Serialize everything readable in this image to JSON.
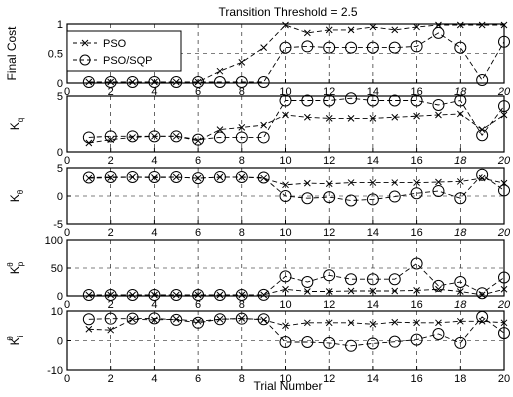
{
  "chart_data": [
    {
      "type": "line",
      "title": "Transition Threshold = 2.5",
      "ylabel": "Final Cost",
      "ylim": [
        0,
        1
      ],
      "yticks": [
        "0",
        "0.5",
        "1"
      ],
      "x": [
        1,
        2,
        3,
        4,
        5,
        6,
        7,
        8,
        9,
        10,
        11,
        12,
        13,
        14,
        15,
        16,
        17,
        18,
        19,
        20
      ],
      "series": [
        {
          "name": "PSO",
          "values": [
            0,
            0,
            0,
            0,
            0,
            0,
            0.2,
            0.35,
            0.6,
            1.0,
            0.85,
            0.9,
            0.9,
            0.95,
            0.9,
            0.95,
            1.0,
            1.0,
            1.05,
            1.05
          ]
        },
        {
          "name": "PSO/SQP",
          "values": [
            0,
            0,
            0,
            0,
            0,
            0,
            0,
            0,
            0,
            0.6,
            0.62,
            0.6,
            0.6,
            0.6,
            0.6,
            0.62,
            0.85,
            0.6,
            0.05,
            0.7
          ]
        }
      ],
      "legend": "top-left",
      "grid": true
    },
    {
      "type": "line",
      "ylabel": "K",
      "ylabel_sub": "q",
      "ylim": [
        0,
        5
      ],
      "yticks": [
        "0",
        "5"
      ],
      "x": [
        1,
        2,
        3,
        4,
        5,
        6,
        7,
        8,
        9,
        10,
        11,
        12,
        13,
        14,
        15,
        16,
        17,
        18,
        19,
        20
      ],
      "series": [
        {
          "name": "PSO",
          "values": [
            0.8,
            1.1,
            1.3,
            1.4,
            1.4,
            1.0,
            2.0,
            2.2,
            2.4,
            3.3,
            3.1,
            3.0,
            3.0,
            3.0,
            3.1,
            3.2,
            3.3,
            3.4,
            2.0,
            3.3
          ]
        },
        {
          "name": "PSO/SQP",
          "values": [
            1.3,
            1.4,
            1.4,
            1.4,
            1.4,
            1.1,
            1.3,
            1.3,
            1.3,
            4.6,
            4.6,
            4.6,
            4.8,
            4.6,
            4.6,
            4.6,
            4.2,
            4.6,
            1.5,
            4.1
          ]
        }
      ],
      "grid": true
    },
    {
      "type": "line",
      "ylabel": "K",
      "ylabel_sub": "θ",
      "ylim": [
        -5,
        5
      ],
      "yticks": [
        "-5",
        "0",
        "5"
      ],
      "x": [
        1,
        2,
        3,
        4,
        5,
        6,
        7,
        8,
        9,
        10,
        11,
        12,
        13,
        14,
        15,
        16,
        17,
        18,
        19,
        20
      ],
      "series": [
        {
          "name": "PSO",
          "values": [
            3.2,
            3.3,
            3.4,
            3.3,
            3.4,
            3.2,
            3.4,
            3.4,
            3.2,
            2.0,
            2.3,
            2.2,
            2.4,
            2.4,
            2.4,
            2.4,
            2.5,
            2.6,
            3.2,
            2.3
          ]
        },
        {
          "name": "PSO/SQP",
          "values": [
            3.3,
            3.4,
            3.4,
            3.4,
            3.4,
            3.2,
            3.4,
            3.4,
            3.3,
            0.0,
            -0.4,
            -0.2,
            -0.8,
            -0.6,
            -0.1,
            0.5,
            0.9,
            -0.4,
            3.8,
            1.0
          ]
        }
      ],
      "grid": true
    },
    {
      "type": "line",
      "ylabel": "K",
      "ylabel_sub": "p",
      "ylabel_sup": "θ",
      "ylim": [
        0,
        100
      ],
      "yticks": [
        "0",
        "50",
        "100"
      ],
      "x": [
        1,
        2,
        3,
        4,
        5,
        6,
        7,
        8,
        9,
        10,
        11,
        12,
        13,
        14,
        15,
        16,
        17,
        18,
        19,
        20
      ],
      "series": [
        {
          "name": "PSO",
          "values": [
            1,
            1,
            1,
            1,
            1,
            1,
            1,
            1,
            2,
            12,
            8,
            8,
            9,
            9,
            9,
            10,
            12,
            8,
            2,
            12
          ]
        },
        {
          "name": "PSO/SQP",
          "values": [
            1,
            1,
            1,
            1,
            1,
            1,
            1,
            1,
            2,
            35,
            25,
            37,
            30,
            30,
            30,
            58,
            18,
            25,
            5,
            33
          ]
        }
      ],
      "grid": true
    },
    {
      "type": "line",
      "ylabel": "K",
      "ylabel_sub": "i",
      "ylabel_sup": "θ",
      "xlabel": "Trial Number",
      "ylim": [
        -10,
        10
      ],
      "yticks": [
        "-10",
        "0",
        "10"
      ],
      "x": [
        1,
        2,
        3,
        4,
        5,
        6,
        7,
        8,
        9,
        10,
        11,
        12,
        13,
        14,
        15,
        16,
        17,
        18,
        19,
        20
      ],
      "series": [
        {
          "name": "PSO",
          "values": [
            3.8,
            3.5,
            7.2,
            7.0,
            7.2,
            6.5,
            7.2,
            7.5,
            7.0,
            5.0,
            6.0,
            6.0,
            6.0,
            5.5,
            6.2,
            6.0,
            6.0,
            6.5,
            6.5,
            6.0
          ]
        },
        {
          "name": "PSO/SQP",
          "values": [
            7.2,
            7.4,
            7.4,
            7.5,
            7.0,
            6.0,
            7.2,
            7.4,
            7.2,
            -0.5,
            -0.5,
            -0.8,
            -1.8,
            -1.0,
            -0.4,
            0.3,
            2.2,
            -0.8,
            8.0,
            2.5
          ]
        }
      ],
      "grid": true
    }
  ],
  "xaxis": {
    "min": 0,
    "max": 20,
    "ticks": [
      0,
      2,
      4,
      6,
      8,
      10,
      12,
      14,
      16,
      18,
      20
    ],
    "italic_ticks_in_panels": [
      18,
      20
    ]
  }
}
